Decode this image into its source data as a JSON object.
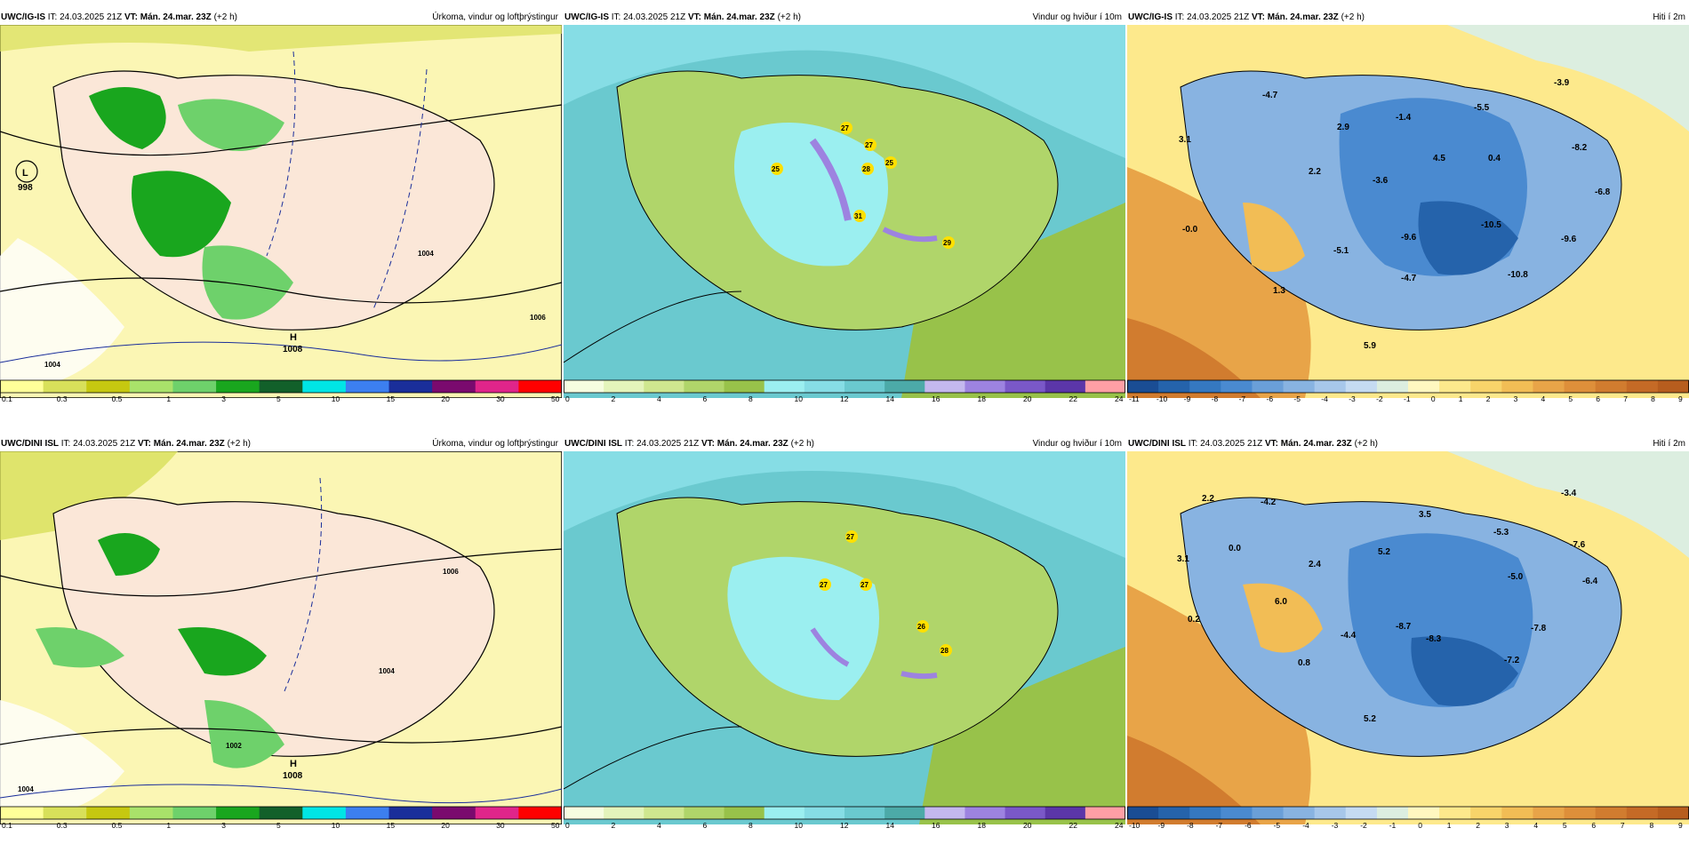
{
  "colors": {
    "precip": [
      "#ffff99",
      "#d8e05a",
      "#c6c810",
      "#a9e26a",
      "#6ed16b",
      "#19a61e",
      "#12602a",
      "#00e5e5",
      "#3c7ff0",
      "#1a2e9a",
      "#7a0a6e",
      "#e0258a",
      "#ff0000"
    ],
    "wind": [
      "#f6fde0",
      "#e4f4bb",
      "#cfe78f",
      "#b0d56a",
      "#98c24a",
      "#9beff0",
      "#86dde5",
      "#6ac9cf",
      "#4caaa8",
      "#c4b8ee",
      "#9d83e0",
      "#7a58c8",
      "#5b36a8",
      "#ff9fa5"
    ],
    "temp": [
      "#1a4d94",
      "#2563ab",
      "#3578c0",
      "#4a8ad0",
      "#6a9fd8",
      "#88b3e1",
      "#a7c7ea",
      "#c5dbf2",
      "#dceee0",
      "#fff7c0",
      "#fde98c",
      "#f8d46a",
      "#f2bd55",
      "#e8a448",
      "#de8f3a",
      "#d17c2f",
      "#c56a26",
      "#b75d1e"
    ]
  },
  "rows": [
    {
      "model": "UWC/IG-IS",
      "panels": [
        {
          "it": "IT: 24.03.2025 21Z",
          "vt_label": "VT: Mán. 24.mar. 23Z",
          "lead": "(+2 h)",
          "title": "Úrkoma, vindur og loftþrýstingur",
          "labels": [
            "L",
            "998",
            "H",
            "1008",
            "1004",
            "1006",
            "1004"
          ],
          "legend": [
            "0.1",
            "0.3",
            "0.5",
            "1",
            "3",
            "5",
            "10",
            "15",
            "20",
            "30",
            "50"
          ]
        },
        {
          "it": "IT: 24.03.2025 21Z",
          "vt_label": "VT: Mán. 24.mar. 23Z",
          "lead": "(+2 h)",
          "title": "Vindur og hviður í 10m",
          "gusts": [
            "27",
            "27",
            "25",
            "25",
            "28",
            "31",
            "29"
          ],
          "legend": [
            "0",
            "2",
            "4",
            "6",
            "8",
            "10",
            "12",
            "14",
            "16",
            "18",
            "20",
            "22",
            "24"
          ]
        },
        {
          "it": "IT: 24.03.2025 21Z",
          "vt_label": "VT: Mán. 24.mar. 23Z",
          "lead": "(+2 h)",
          "title": "Hiti í 2m",
          "temps": [
            "-4.7",
            "3.1",
            "2.9",
            "-1.4",
            "-5.5",
            "-3.9",
            "2.2",
            "-3.6",
            "4.5",
            "0.4",
            "-8.2",
            "-6.8",
            "-0.0",
            "-5.1",
            "-9.6",
            "-10.5",
            "-9.6",
            "-4.7",
            "-10.8",
            "1.3",
            "5.9"
          ],
          "legend": [
            "-11",
            "-10",
            "-9",
            "-8",
            "-7",
            "-6",
            "-5",
            "-4",
            "-3",
            "-2",
            "-1",
            "0",
            "1",
            "2",
            "3",
            "4",
            "5",
            "6",
            "7",
            "8",
            "9"
          ]
        }
      ]
    },
    {
      "model": "UWC/DINI ISL",
      "panels": [
        {
          "it": "IT: 24.03.2025 21Z",
          "vt_label": "VT: Mán. 24.mar. 23Z",
          "lead": "(+2 h)",
          "title": "Úrkoma, vindur og loftþrýstingur",
          "labels": [
            "H",
            "1008",
            "1004",
            "1006",
            "1004",
            "1002"
          ],
          "legend": [
            "0.1",
            "0.3",
            "0.5",
            "1",
            "3",
            "5",
            "10",
            "15",
            "20",
            "30",
            "50"
          ]
        },
        {
          "it": "IT: 24.03.2025 21Z",
          "vt_label": "VT: Mán. 24.mar. 23Z",
          "lead": "(+2 h)",
          "title": "Vindur og hviður í 10m",
          "gusts": [
            "27",
            "27",
            "27",
            "26",
            "28"
          ],
          "legend": [
            "0",
            "2",
            "4",
            "6",
            "8",
            "10",
            "12",
            "14",
            "16",
            "18",
            "20",
            "22",
            "24"
          ]
        },
        {
          "it": "IT: 24.03.2025 21Z",
          "vt_label": "VT: Mán. 24.mar. 23Z",
          "lead": "(+2 h)",
          "title": "Hiti í 2m",
          "temps": [
            "2.2",
            "-4.2",
            "-3.4",
            "3.5",
            "3.1",
            "0.0",
            "2.4",
            "5.2",
            "-5.3",
            "-7.6",
            "-5.0",
            "-6.4",
            "6.0",
            "0.2",
            "-4.4",
            "-8.7",
            "-8.3",
            "-7.8",
            "-7.2",
            "0.8",
            "5.2"
          ],
          "legend": [
            "-10",
            "-9",
            "-8",
            "-7",
            "-6",
            "-5",
            "-4",
            "-3",
            "-2",
            "-1",
            "0",
            "1",
            "2",
            "3",
            "4",
            "5",
            "6",
            "7",
            "8",
            "9"
          ]
        }
      ]
    }
  ]
}
